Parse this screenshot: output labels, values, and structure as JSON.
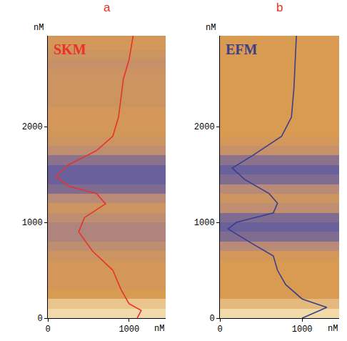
{
  "chart_data": [
    {
      "type": "line",
      "label": "a",
      "title": "SKM",
      "xlabel": "nM",
      "ylabel": "nM",
      "xlim": [
        0,
        1450
      ],
      "ylim": [
        0,
        2950
      ],
      "xticks": [
        0,
        1000
      ],
      "yticks": [
        0,
        1000,
        2000
      ],
      "series": [
        {
          "color": "#e8322a",
          "x": [
            1100,
            1150,
            1000,
            900,
            800,
            550,
            380,
            450,
            710,
            600,
            250,
            100,
            250,
            600,
            800,
            870,
            900,
            930,
            1000,
            1050
          ],
          "y": [
            0,
            80,
            150,
            300,
            500,
            700,
            900,
            1050,
            1194,
            1300,
            1380,
            1480,
            1600,
            1750,
            1900,
            2100,
            2300,
            2500,
            2700,
            2950
          ]
        }
      ],
      "heatmap": {
        "x": [
          0,
          1450
        ],
        "y": [
          0,
          100,
          200,
          300,
          400,
          500,
          600,
          700,
          800,
          900,
          1000,
          1100,
          1200,
          1300,
          1400,
          1500,
          1600,
          1700,
          1800,
          1900,
          2000,
          2100,
          2200,
          2300,
          2400,
          2500,
          2600,
          2700,
          2800,
          2900,
          2950
        ],
        "values": [
          0.05,
          0.15,
          0.35,
          0.4,
          0.4,
          0.4,
          0.45,
          0.55,
          0.65,
          0.65,
          0.55,
          0.45,
          0.6,
          0.85,
          0.95,
          0.95,
          0.8,
          0.55,
          0.45,
          0.4,
          0.4,
          0.4,
          0.45,
          0.45,
          0.45,
          0.45,
          0.5,
          0.45,
          0.4,
          0.4
        ],
        "zlim": [
          0,
          1
        ]
      }
    },
    {
      "type": "line",
      "label": "b",
      "title": "EFM",
      "xlabel": "nM",
      "ylabel": "nM",
      "xlim": [
        0,
        1450
      ],
      "ylim": [
        0,
        2950
      ],
      "xticks": [
        0,
        1000
      ],
      "yticks": [
        0,
        1000,
        2000
      ],
      "series": [
        {
          "color": "#3a3f8a",
          "x": [
            1000,
            1300,
            1000,
            800,
            700,
            650,
            350,
            100,
            200,
            650,
            700,
            600,
            300,
            150,
            400,
            750,
            870,
            900,
            930
          ],
          "y": [
            0,
            112,
            200,
            350,
            500,
            650,
            800,
            933,
            1000,
            1100,
            1200,
            1300,
            1450,
            1567,
            1700,
            1900,
            2100,
            2400,
            2950
          ]
        }
      ],
      "heatmap": {
        "x": [
          0,
          1450
        ],
        "y": [
          0,
          100,
          200,
          300,
          400,
          500,
          600,
          700,
          800,
          900,
          1000,
          1100,
          1200,
          1300,
          1400,
          1500,
          1600,
          1700,
          1800,
          1900,
          2000,
          2100,
          2200,
          2300,
          2400,
          2500,
          2600,
          2700,
          2800,
          2900,
          2950
        ],
        "values": [
          0.05,
          0.2,
          0.35,
          0.35,
          0.35,
          0.35,
          0.4,
          0.6,
          0.85,
          0.95,
          0.85,
          0.55,
          0.45,
          0.6,
          0.85,
          0.95,
          0.8,
          0.5,
          0.4,
          0.35,
          0.35,
          0.35,
          0.35,
          0.35,
          0.35,
          0.35,
          0.35,
          0.35,
          0.35,
          0.35
        ],
        "zlim": [
          0,
          1
        ]
      }
    }
  ]
}
